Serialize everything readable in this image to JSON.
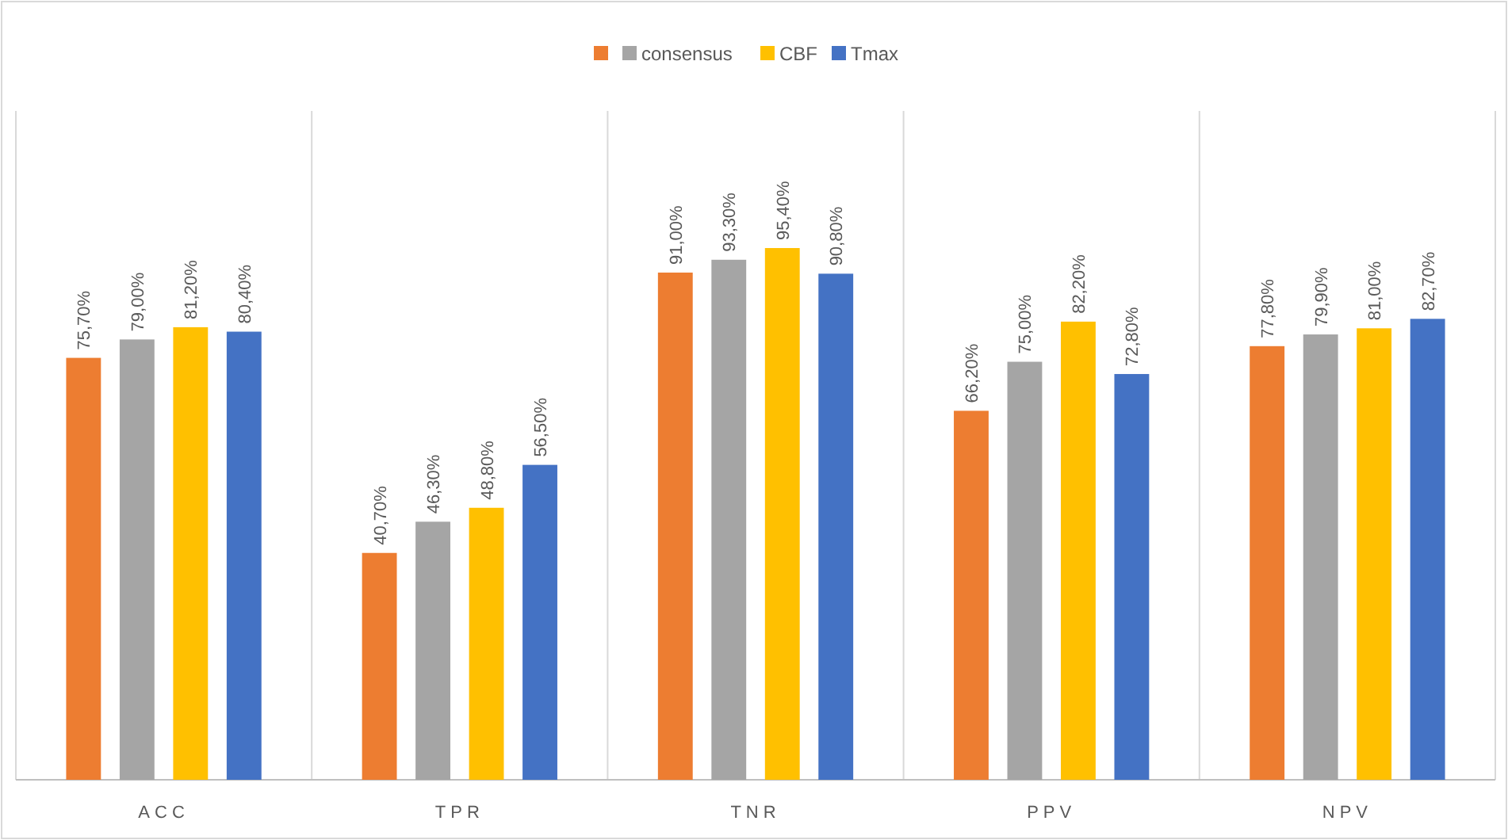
{
  "chart_data": {
    "type": "bar",
    "categories": [
      "ACC",
      "TPR",
      "TNR",
      "PPV",
      "NPV"
    ],
    "series": [
      {
        "color": "#ed7d31",
        "values": [
          75.7,
          40.7,
          91.0,
          66.2,
          77.8
        ],
        "value_labels": [
          "75,70%",
          "40,70%",
          "91,00%",
          "66,20%",
          "77,80%"
        ]
      },
      {
        "name": "consensus",
        "color": "#a5a5a5",
        "values": [
          79.0,
          46.3,
          93.3,
          75.0,
          79.9
        ],
        "value_labels": [
          "79,00%",
          "46,30%",
          "93,30%",
          "75,00%",
          "79,90%"
        ]
      },
      {
        "name": "CBF",
        "color": "#ffc000",
        "values": [
          81.2,
          48.8,
          95.4,
          82.2,
          81.0
        ],
        "value_labels": [
          "81,20%",
          "48,80%",
          "95,40%",
          "82,20%",
          "81,00%"
        ]
      },
      {
        "name": "Tmax",
        "color": "#4472c4",
        "values": [
          80.4,
          56.5,
          90.8,
          72.8,
          82.7
        ],
        "value_labels": [
          "80,40%",
          "56,50%",
          "90,80%",
          "72,80%",
          "82,70%"
        ]
      }
    ],
    "ylim": [
      0,
      120
    ],
    "tick_labels": "x",
    "grid": "x",
    "legend": "top"
  }
}
